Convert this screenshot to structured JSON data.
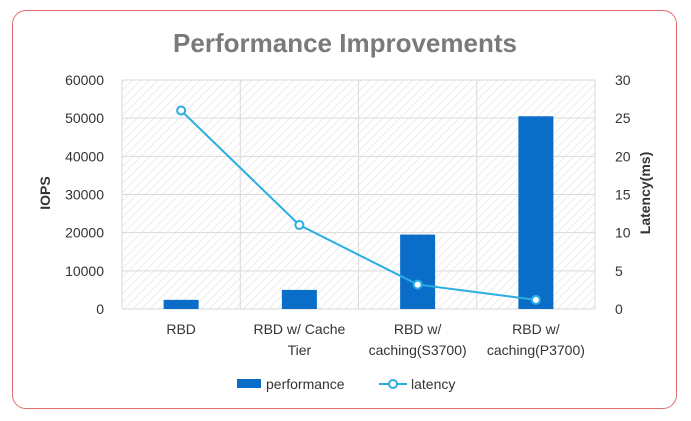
{
  "chart_data": {
    "type": "bar",
    "title": "Performance Improvements",
    "categories": [
      [
        "RBD"
      ],
      [
        "RBD w/ Cache",
        "Tier"
      ],
      [
        "RBD w/",
        "caching(S3700)"
      ],
      [
        "RBD w/",
        "caching(P3700)"
      ]
    ],
    "series": [
      {
        "name": "performance",
        "type": "bar",
        "axis": "left",
        "values": [
          2400,
          5000,
          19500,
          50500
        ]
      },
      {
        "name": "latency",
        "type": "line",
        "axis": "right",
        "values": [
          26,
          11,
          3.2,
          1.2
        ]
      }
    ],
    "ylabel": "IOPS",
    "y2label": "Latency(ms)",
    "ylim": [
      0,
      60000
    ],
    "y2lim": [
      0,
      30
    ],
    "yticks": [
      0,
      10000,
      20000,
      30000,
      40000,
      50000,
      60000
    ],
    "y2ticks": [
      0,
      5,
      10,
      15,
      20,
      25,
      30
    ],
    "grid": true,
    "legend_position": "bottom",
    "colors": {
      "bar": "#0a6ec9",
      "line": "#2aaee0",
      "grid": "#d9d9d9",
      "frame": "#e07070"
    }
  }
}
